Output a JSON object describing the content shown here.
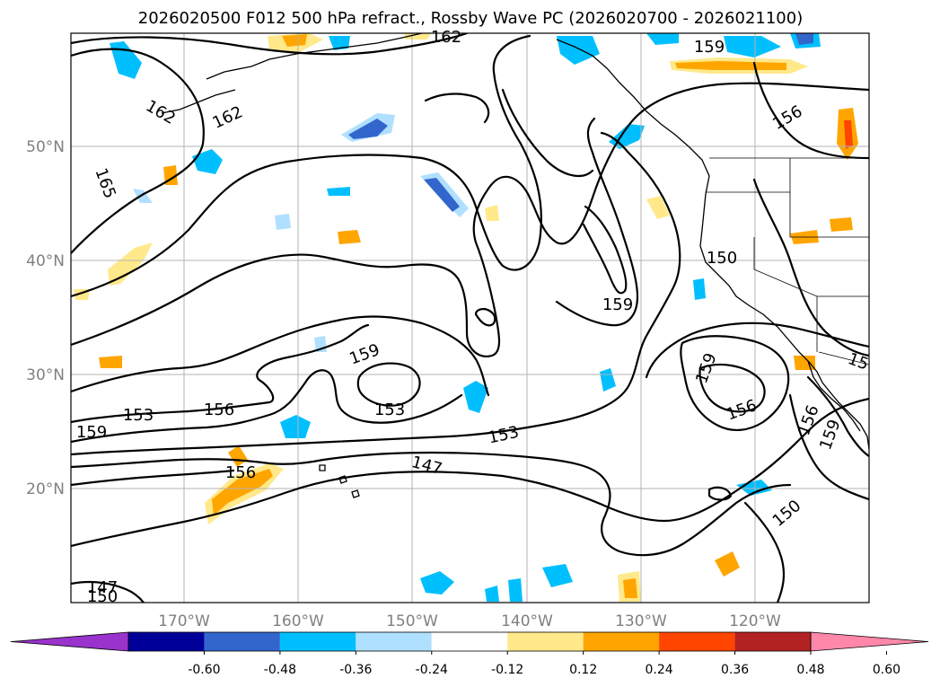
{
  "title": "2026020500 F012 500 hPa refract., Rossby Wave PC (2026020700 - 2026021100)",
  "map": {
    "lon_range": [
      -180,
      -110
    ],
    "lat_range": [
      10,
      60
    ],
    "lon_ticks": [
      {
        "value": -170,
        "label": "170°W"
      },
      {
        "value": -160,
        "label": "160°W"
      },
      {
        "value": -150,
        "label": "150°W"
      },
      {
        "value": -140,
        "label": "140°W"
      },
      {
        "value": -130,
        "label": "130°W"
      },
      {
        "value": -120,
        "label": "120°W"
      }
    ],
    "lat_ticks": [
      {
        "value": 50,
        "label": "50°N"
      },
      {
        "value": 40,
        "label": "40°N"
      },
      {
        "value": 30,
        "label": "30°N"
      },
      {
        "value": 20,
        "label": "20°N"
      }
    ],
    "grid": true
  },
  "contour_labels": [
    "162",
    "159",
    "156",
    "162",
    "162",
    "165",
    "150",
    "159",
    "159",
    "153",
    "156",
    "153",
    "159",
    "156",
    "153",
    "156",
    "147",
    "159",
    "156",
    "150",
    "159",
    "147",
    "150",
    "15"
  ],
  "colorbar": {
    "ticks": [
      "-0.60",
      "-0.48",
      "-0.36",
      "-0.24",
      "-0.12",
      "0.12",
      "0.24",
      "0.36",
      "0.48",
      "0.60"
    ],
    "colors": [
      "#9933cc",
      "#000099",
      "#3366cc",
      "#00bfff",
      "#b0e0ff",
      "#ffffff",
      "#ffe98a",
      "#ffa500",
      "#ff4500",
      "#b22222",
      "#ff88aa"
    ]
  },
  "fill_colors": {
    "neg_weak": "#b0e0ff",
    "neg_mid": "#00bfff",
    "neg_strong": "#3366cc",
    "pos_weak": "#ffe98a",
    "pos_mid": "#ffa500",
    "pos_strong": "#ff4500"
  }
}
